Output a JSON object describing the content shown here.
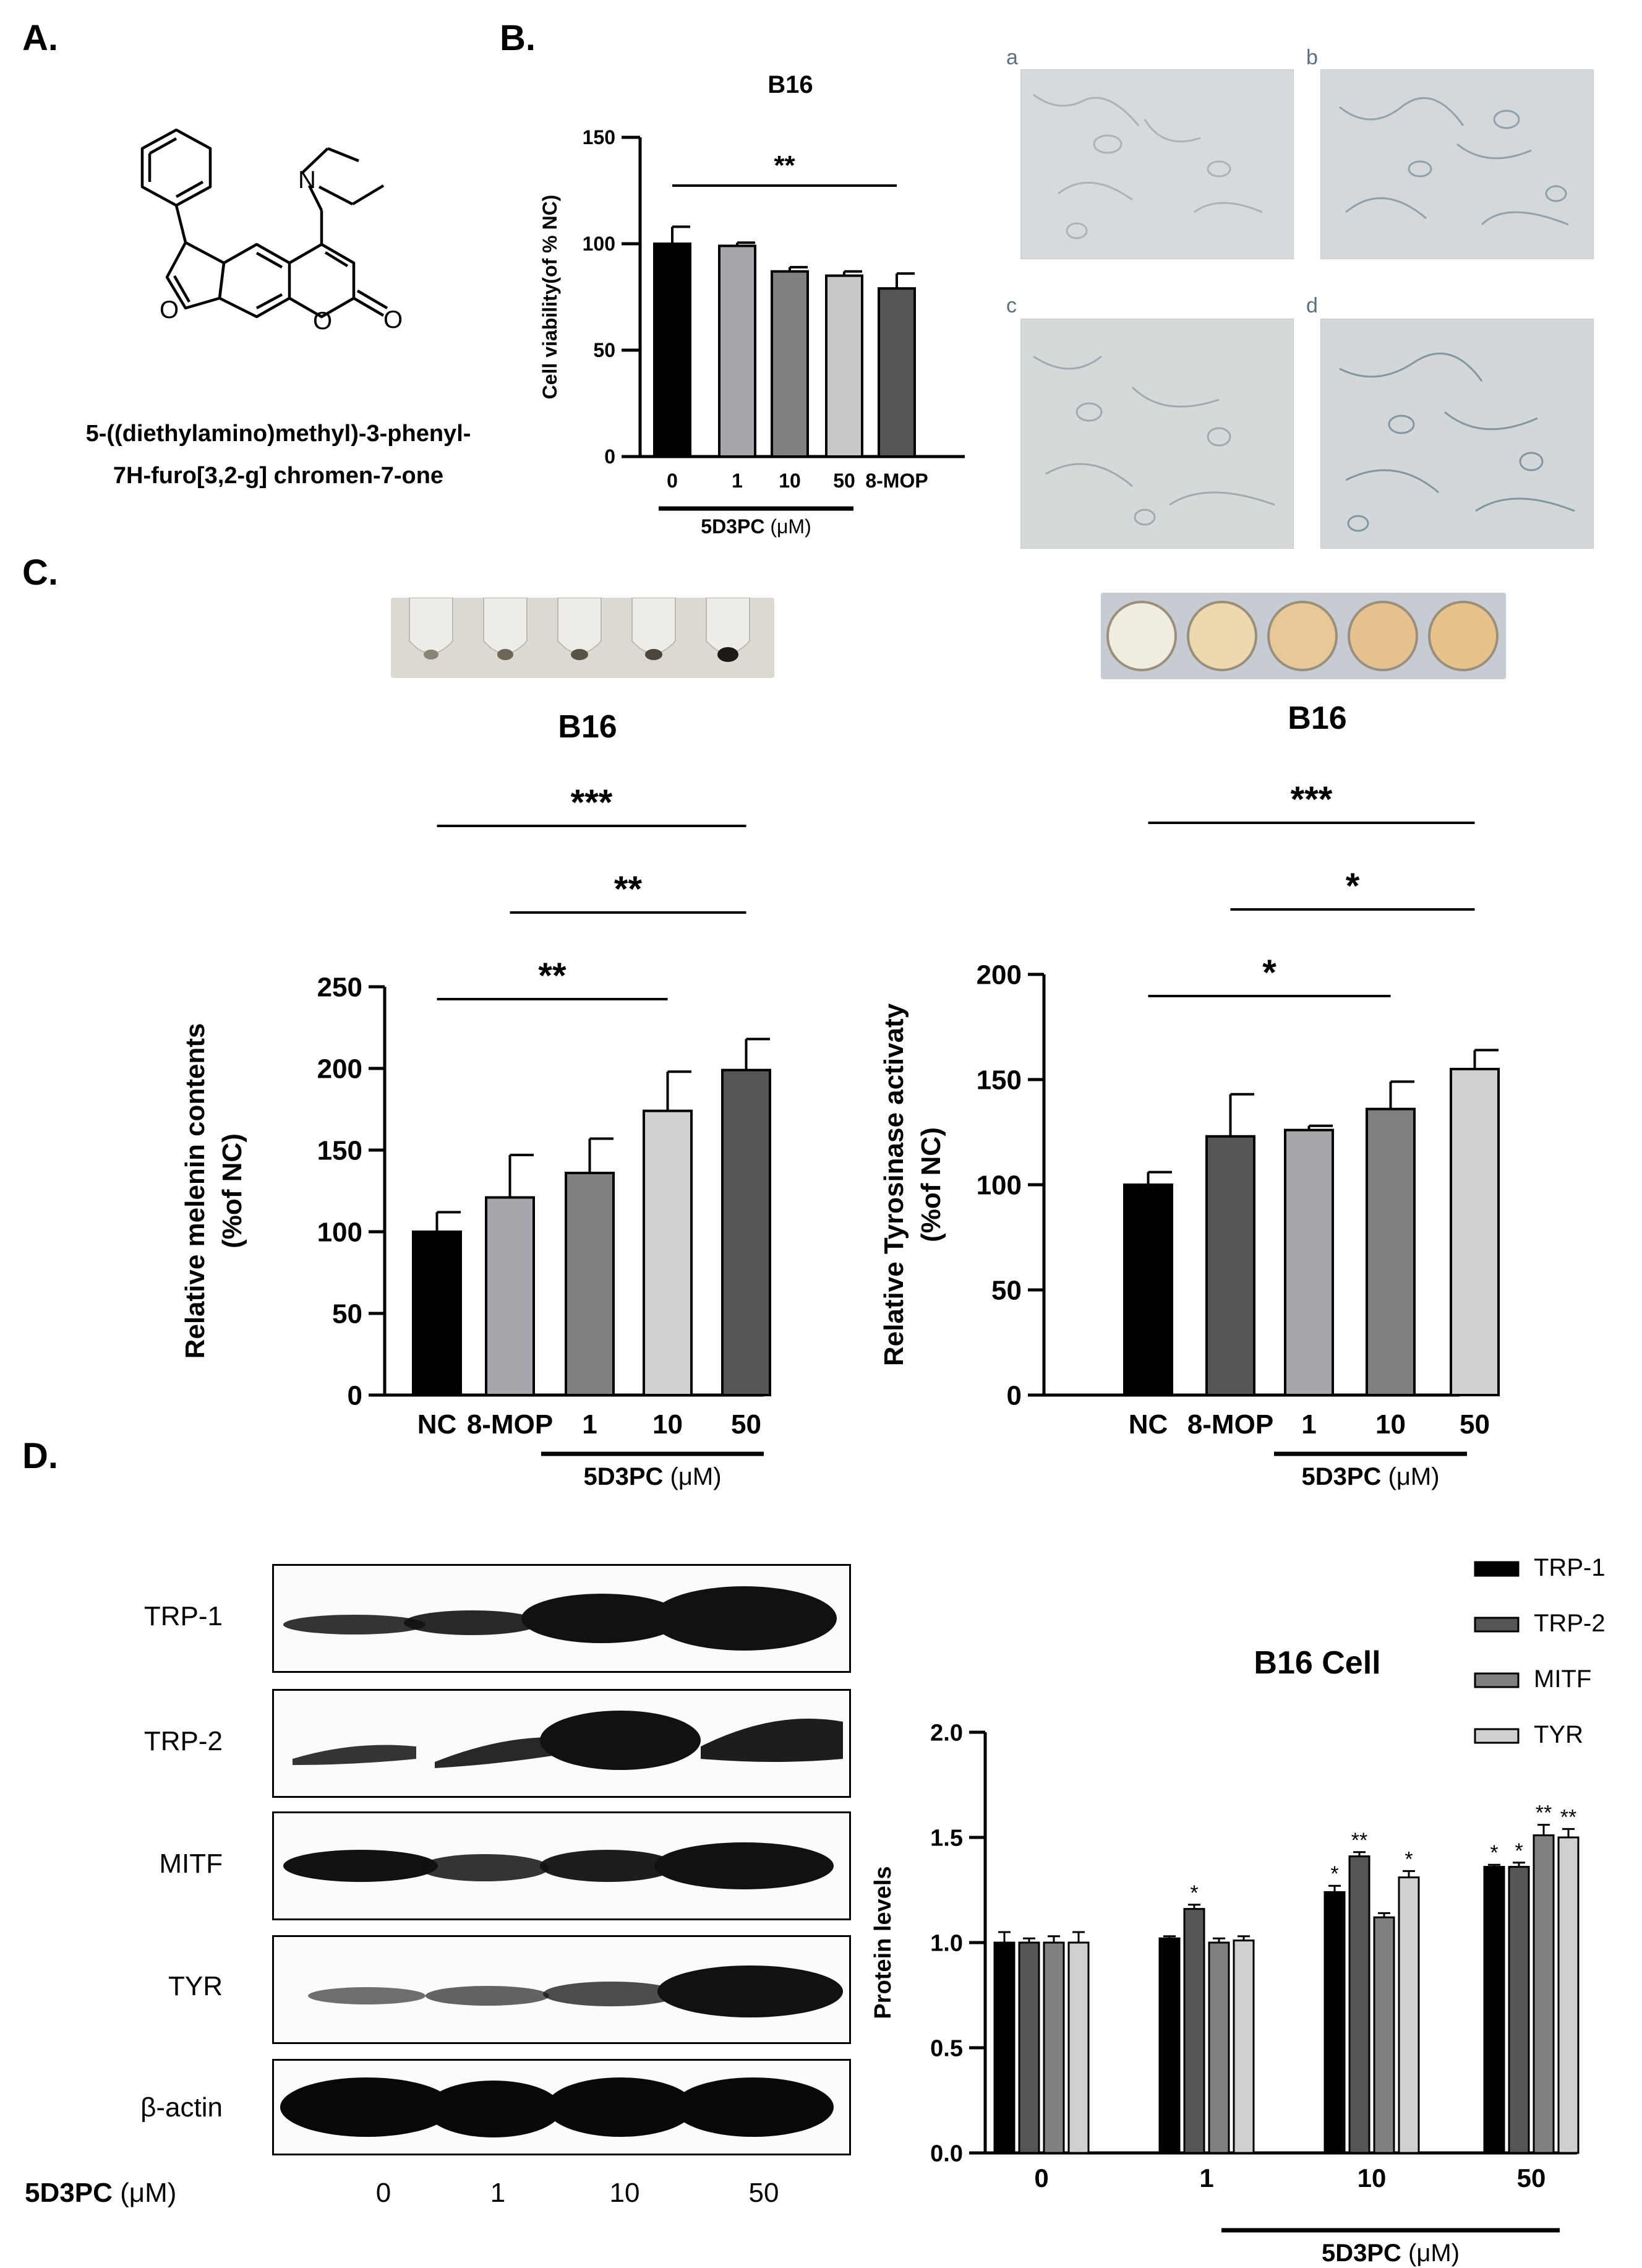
{
  "panels": {
    "A": {
      "letter": "A.",
      "compound_name_line1": "5-((diethylamino)methyl)-3-phenyl-",
      "compound_name_line2": "7H-furo[3,2-g] chromen-7-one",
      "structure_atoms": {
        "N": "N",
        "O_ring": "O",
        "O_lactone": "O",
        "O_carbonyl": "O"
      }
    },
    "B": {
      "letter": "B.",
      "micrograph_labels": [
        "a",
        "b",
        "c",
        "d"
      ]
    },
    "C": {
      "letter": "C."
    },
    "D": {
      "letter": "D.",
      "blot_rows": [
        "TRP-1",
        "TRP-2",
        "MITF",
        "TYR",
        "β-actin"
      ],
      "lane_axis_label": "5D3PC",
      "lane_axis_unit": "(μM)",
      "lanes": [
        "0",
        "1",
        "10",
        "50"
      ]
    }
  },
  "colors": {
    "black_bar": "#000000",
    "dark_gray_bar": "#555555",
    "mid_gray_bar": "#7f7f7f",
    "light_gray_bar": "#c8c8c8",
    "lavender_gray_bar": "#a6a6ad",
    "micrograph_bg": "#d7dadc",
    "melanin_tube_bg": "#dcd9d2",
    "tyrosinase_well_color": "#e7c28c"
  },
  "chart_data": [
    {
      "id": "viability",
      "type": "bar",
      "title": "B16",
      "ylabel": "Cell viability(of % NC)",
      "categories": [
        "0",
        "1",
        "10",
        "50",
        "8-MOP"
      ],
      "values": [
        100,
        99,
        87,
        85,
        79
      ],
      "errors": [
        8,
        1.5,
        2,
        2,
        7
      ],
      "bar_colors": [
        "#000000",
        "#a6a6ad",
        "#808080",
        "#c8c8c8",
        "#555555"
      ],
      "ylim": [
        0,
        150
      ],
      "yticks": [
        0,
        50,
        100,
        150
      ],
      "group_label": "5D3PC",
      "group_unit": "(μM)",
      "significance": [
        {
          "from": 0,
          "to": 4,
          "text": "**"
        }
      ]
    },
    {
      "id": "melanin",
      "type": "bar",
      "title": "B16",
      "ylabel_line1": "Relative melenin contents",
      "ylabel_line2": "(%of NC)",
      "categories": [
        "NC",
        "8-MOP",
        "1",
        "10",
        "50"
      ],
      "values": [
        100,
        121,
        136,
        174,
        199
      ],
      "errors": [
        12,
        26,
        21,
        24,
        19
      ],
      "bar_colors": [
        "#000000",
        "#a6a6ad",
        "#808080",
        "#d0d0d0",
        "#555555"
      ],
      "ylim": [
        0,
        250
      ],
      "yticks": [
        0,
        50,
        100,
        150,
        200,
        250
      ],
      "group_label": "5D3PC",
      "group_unit": "(μM)",
      "significance": [
        {
          "from": 0,
          "to": 4,
          "text": "***"
        },
        {
          "from": 1,
          "to": 4,
          "text": "**"
        },
        {
          "from": 0,
          "to": 3,
          "text": "**"
        }
      ]
    },
    {
      "id": "tyrosinase",
      "type": "bar",
      "title": "B16",
      "ylabel_line1": "Relative Tyrosinase activaty",
      "ylabel_line2": "(%of NC)",
      "categories": [
        "NC",
        "8-MOP",
        "1",
        "10",
        "50"
      ],
      "values": [
        100,
        123,
        126,
        136,
        155
      ],
      "errors": [
        6,
        20,
        2,
        13,
        9
      ],
      "bar_colors": [
        "#000000",
        "#555555",
        "#a6a6ad",
        "#808080",
        "#d0d0d0"
      ],
      "ylim": [
        0,
        200
      ],
      "yticks": [
        0,
        50,
        100,
        150,
        200
      ],
      "group_label": "5D3PC",
      "group_unit": "(μM)",
      "significance": [
        {
          "from": 0,
          "to": 4,
          "text": "***"
        },
        {
          "from": 1,
          "to": 4,
          "text": "*"
        },
        {
          "from": 0,
          "to": 3,
          "text": "*"
        }
      ]
    },
    {
      "id": "protein",
      "type": "bar",
      "title": "B16 Cell",
      "ylabel": "Protein levels",
      "categories": [
        "0",
        "1",
        "10",
        "50"
      ],
      "series": [
        {
          "name": "TRP-1",
          "color": "#000000",
          "values": [
            1.0,
            1.02,
            1.24,
            1.36
          ],
          "errors": [
            0.05,
            0.01,
            0.03,
            0.01
          ],
          "stars": [
            "",
            "",
            "*",
            "*"
          ]
        },
        {
          "name": "TRP-2",
          "color": "#555555",
          "values": [
            1.0,
            1.16,
            1.41,
            1.36
          ],
          "errors": [
            0.02,
            0.02,
            0.02,
            0.02
          ],
          "stars": [
            "",
            "*",
            "**",
            "*"
          ]
        },
        {
          "name": "MITF",
          "color": "#808080",
          "values": [
            1.0,
            1.0,
            1.12,
            1.51
          ],
          "errors": [
            0.03,
            0.02,
            0.02,
            0.05
          ],
          "stars": [
            "",
            "",
            "",
            "**"
          ]
        },
        {
          "name": "TYR",
          "color": "#d0d0d0",
          "values": [
            1.0,
            1.01,
            1.31,
            1.5
          ],
          "errors": [
            0.05,
            0.02,
            0.03,
            0.04
          ],
          "stars": [
            "",
            "",
            "*",
            "**"
          ]
        }
      ],
      "ylim": [
        0,
        2.0
      ],
      "yticks": [
        "0.0",
        "0.5",
        "1.0",
        "1.5",
        "2.0"
      ],
      "group_label": "5D3PC",
      "group_unit": "(μM)",
      "legend_position": "top-right"
    }
  ]
}
